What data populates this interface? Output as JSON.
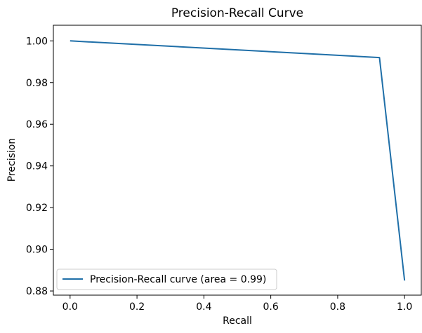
{
  "chart_data": {
    "type": "line",
    "title": "Precision-Recall Curve",
    "xlabel": "Recall",
    "ylabel": "Precision",
    "xlim": [
      -0.05,
      1.05
    ],
    "ylim": [
      0.878,
      1.0075
    ],
    "x_ticks": [
      0.0,
      0.2,
      0.4,
      0.6,
      0.8,
      1.0
    ],
    "x_tick_labels": [
      "0.0",
      "0.2",
      "0.4",
      "0.6",
      "0.8",
      "1.0"
    ],
    "y_ticks": [
      0.88,
      0.9,
      0.92,
      0.94,
      0.96,
      0.98,
      1.0
    ],
    "y_tick_labels": [
      "0.88",
      "0.90",
      "0.92",
      "0.94",
      "0.96",
      "0.98",
      "1.00"
    ],
    "grid": false,
    "legend_position": "lower-left",
    "series": [
      {
        "name": "Precision-Recall curve (area = 0.99)",
        "color": "#1f6fa8",
        "x": [
          0.0,
          0.925,
          1.0
        ],
        "y": [
          1.0,
          0.992,
          0.885
        ]
      }
    ]
  }
}
